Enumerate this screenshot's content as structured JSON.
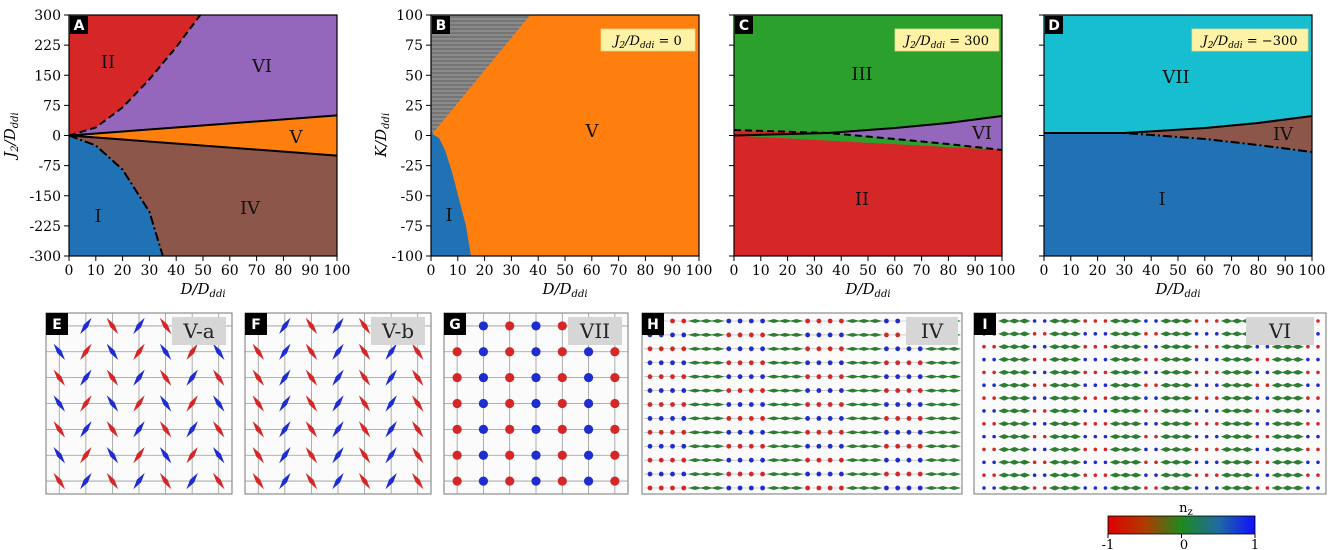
{
  "colors": {
    "I": "#2171b5",
    "II": "#d62728",
    "III": "#2ca02c",
    "IV": "#8c564b",
    "V": "#ff7f0e",
    "VI": "#9467bd",
    "VII": "#17becf",
    "hatch": "#808080",
    "spin_red": "#d62728",
    "spin_blue": "#1f2ccf",
    "spin_green": "#2e7d32"
  },
  "chart_data": [
    {
      "panel": "A",
      "type": "heatmap",
      "xlabel": "D/D_ddi",
      "ylabel": "J_2/D_ddi",
      "xlim": [
        0,
        100
      ],
      "ylim": [
        -300,
        300
      ],
      "xticks": [
        "0",
        "10",
        "20",
        "30",
        "40",
        "50",
        "60",
        "70",
        "80",
        "90",
        "100"
      ],
      "yticks": [
        "300",
        "225",
        "150",
        "75",
        "0",
        "-75",
        "-150",
        "-225",
        "-300"
      ],
      "regions": [
        "I",
        "II",
        "IV",
        "V",
        "VI"
      ],
      "boundaries": {
        "II_VI_dashed": [
          [
            0,
            0
          ],
          [
            10,
            20
          ],
          [
            20,
            70
          ],
          [
            30,
            140
          ],
          [
            40,
            220
          ],
          [
            49,
            300
          ]
        ],
        "VI_V_solid": [
          [
            0,
            0
          ],
          [
            100,
            50
          ]
        ],
        "V_IV_solid": [
          [
            0,
            0
          ],
          [
            100,
            -50
          ]
        ],
        "I_IV_dashdot": [
          [
            0,
            0
          ],
          [
            10,
            -25
          ],
          [
            20,
            -85
          ],
          [
            30,
            -190
          ],
          [
            35,
            -300
          ]
        ]
      }
    },
    {
      "panel": "B",
      "type": "heatmap",
      "annotation": "J_2/D_ddi = 0",
      "xlabel": "D/D_ddi",
      "ylabel": "K/D_ddi",
      "xlim": [
        0,
        100
      ],
      "ylim": [
        -100,
        100
      ],
      "xticks": [
        "0",
        "10",
        "20",
        "30",
        "40",
        "50",
        "60",
        "70",
        "80",
        "90",
        "100"
      ],
      "yticks": [
        "100",
        "75",
        "50",
        "25",
        "0",
        "-25",
        "-50",
        "-75",
        "-100"
      ],
      "regions": [
        "I",
        "V"
      ],
      "boundaries": {
        "hatched_edge": [
          [
            0,
            0
          ],
          [
            37,
            100
          ]
        ],
        "I_V_edge": [
          [
            0,
            2
          ],
          [
            5,
            -25
          ],
          [
            10,
            -60
          ],
          [
            15,
            -100
          ]
        ]
      }
    },
    {
      "panel": "C",
      "type": "heatmap",
      "annotation": "J_2/D_ddi = 300",
      "xlabel": "D/D_ddi",
      "ylabel": "",
      "xlim": [
        0,
        100
      ],
      "ylim": [
        -100,
        100
      ],
      "xticks": [
        "0",
        "10",
        "20",
        "30",
        "40",
        "50",
        "60",
        "70",
        "80",
        "90",
        "100"
      ],
      "regions": [
        "II",
        "III",
        "VI"
      ],
      "boundaries": {
        "III_solid": [
          [
            0,
            0
          ],
          [
            35,
            2
          ],
          [
            60,
            6
          ],
          [
            80,
            10
          ],
          [
            100,
            16
          ]
        ],
        "dashed": [
          [
            0,
            4
          ],
          [
            35,
            2
          ],
          [
            60,
            -3
          ],
          [
            80,
            -7
          ],
          [
            100,
            -12
          ]
        ]
      }
    },
    {
      "panel": "D",
      "type": "heatmap",
      "annotation": "J_2/D_ddi = −300",
      "xlabel": "D/D_ddi",
      "ylabel": "",
      "xlim": [
        0,
        100
      ],
      "ylim": [
        -100,
        100
      ],
      "xticks": [
        "0",
        "10",
        "20",
        "30",
        "40",
        "50",
        "60",
        "70",
        "80",
        "90",
        "100"
      ],
      "regions": [
        "I",
        "IV",
        "VII"
      ],
      "boundaries": {
        "solid": [
          [
            0,
            2
          ],
          [
            30,
            2
          ],
          [
            60,
            6
          ],
          [
            80,
            10
          ],
          [
            100,
            16
          ]
        ],
        "dashdot": [
          [
            0,
            2
          ],
          [
            30,
            2
          ],
          [
            60,
            -3
          ],
          [
            80,
            -8
          ],
          [
            100,
            -14
          ]
        ]
      }
    },
    {
      "type": "colorbar",
      "label": "n_z",
      "range": [
        -1,
        1
      ],
      "ticks": [
        "-1",
        "0",
        "1"
      ],
      "colors": [
        "#d62728",
        "#2e7d32",
        "#1f2ccf"
      ]
    }
  ],
  "panels": {
    "A": {
      "letter": "A",
      "label_I": "I",
      "label_II": "II",
      "label_IV": "IV",
      "label_V": "V",
      "label_VI": "VI"
    },
    "B": {
      "letter": "B",
      "label_I": "I",
      "label_V": "V",
      "ann": "J₂/Dₓₓᵢ = 0"
    },
    "C": {
      "letter": "C",
      "label_II": "II",
      "label_III": "III",
      "label_VI": "VI"
    },
    "D": {
      "letter": "D",
      "label_I": "I",
      "label_IV": "IV",
      "label_VII": "VII"
    },
    "E": {
      "letter": "E",
      "tag": "V-a"
    },
    "F": {
      "letter": "F",
      "tag": "V-b"
    },
    "G": {
      "letter": "G",
      "tag": "VII"
    },
    "H": {
      "letter": "H",
      "tag": "IV"
    },
    "I": {
      "letter": "I",
      "tag": "VI"
    }
  },
  "axes": {
    "xlabel_main": "D/D",
    "xlabel_sub": "ddi",
    "ylabel_A_main": "J",
    "ylabel_A_sub2": "2",
    "ylabel_A_rest": "/D",
    "ylabel_A_sub": "ddi",
    "ylabel_B_main": "K/D",
    "ylabel_B_sub": "ddi"
  },
  "annotations": {
    "B_main": "J",
    "B_sub2": "2",
    "B_mid": "/D",
    "B_sub": "ddi",
    "B_val": " = 0",
    "C_val": " = 300",
    "D_val": " = −300"
  },
  "colorbar": {
    "label_main": "n",
    "label_sub": "z",
    "t_min": "-1",
    "t_mid": "0",
    "t_max": "1"
  }
}
